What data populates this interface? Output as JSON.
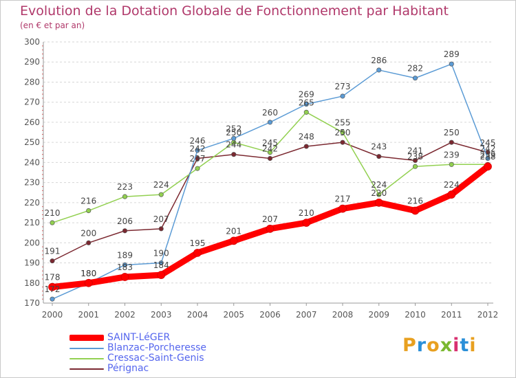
{
  "header": {
    "title": "Evolution de la Dotation Globale de Fonctionnement par Habitant",
    "subtitle": "(en € et par an)"
  },
  "logo": {
    "text": "Proxiti",
    "colors": [
      "#e8a020",
      "#2a8fd8",
      "#e8a020",
      "#7ab830",
      "#d83070",
      "#2a8fd8",
      "#e8a020"
    ]
  },
  "chart_data": {
    "type": "line",
    "title": "Evolution de la Dotation Globale de Fonctionnement par Habitant",
    "subtitle": "(en € et par an)",
    "x": [
      "2000",
      "2001",
      "2002",
      "2003",
      "2004",
      "2005",
      "2006",
      "2007",
      "2008",
      "2009",
      "2010",
      "2011",
      "2012"
    ],
    "ylim": [
      170,
      300
    ],
    "yticks": [
      170,
      180,
      190,
      200,
      210,
      220,
      230,
      240,
      250,
      260,
      270,
      280,
      290,
      300
    ],
    "grid": "horizontal dashed",
    "legend_position": "bottom-left",
    "series": [
      {
        "name": "SAINT-LéGER",
        "color": "#ff0000",
        "values": [
          178,
          180,
          183,
          184,
          195,
          201,
          207,
          210,
          217,
          220,
          216,
          224,
          238
        ]
      },
      {
        "name": "Blanzac-Porcheresse",
        "color": "#5b9bd5",
        "values": [
          172,
          180,
          189,
          190,
          246,
          252,
          260,
          269,
          273,
          286,
          282,
          289,
          242
        ]
      },
      {
        "name": "Cressac-Saint-Genis",
        "color": "#92d050",
        "values": [
          210,
          216,
          223,
          224,
          237,
          250,
          245,
          265,
          255,
          224,
          238,
          239,
          239
        ]
      },
      {
        "name": "Pérignac",
        "color": "#7b2830",
        "values": [
          191,
          200,
          206,
          207,
          242,
          244,
          242,
          248,
          250,
          243,
          241,
          250,
          245
        ]
      }
    ]
  }
}
